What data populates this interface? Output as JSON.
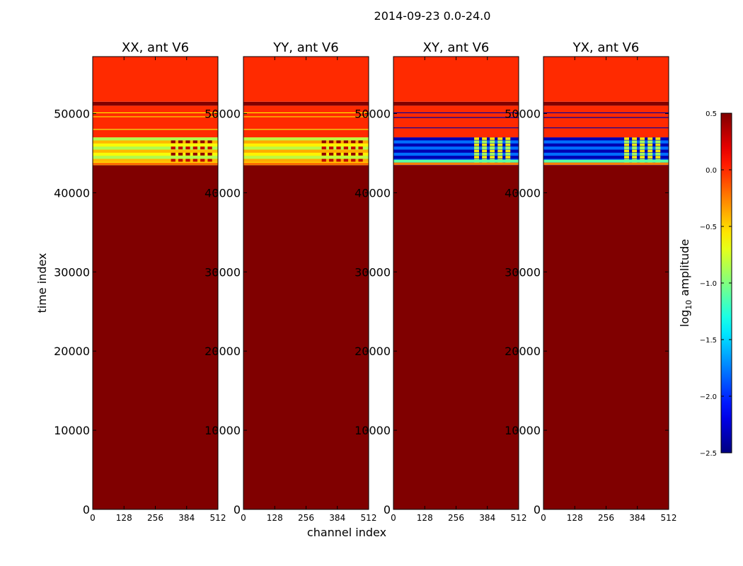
{
  "figure": {
    "suptitle": "2014-09-23 0.0-24.0"
  },
  "chart_data": {
    "type": "heatmap",
    "xlabel": "channel index",
    "ylabel": "time index",
    "xlim": [
      0,
      512
    ],
    "ylim": [
      0,
      57200
    ],
    "x_ticks": [
      0,
      128,
      256,
      384,
      512
    ],
    "y_ticks": [
      0,
      10000,
      20000,
      30000,
      40000,
      50000
    ],
    "colorbar": {
      "label": "log10 amplitude",
      "label_base": "log",
      "label_sub": "10",
      "label_rest": " amplitude",
      "range": [
        -2.5,
        0.5
      ],
      "ticks": [
        "0.5",
        "0.0",
        "−0.5",
        "−1.0",
        "−1.5",
        "−2.0",
        "−2.5"
      ],
      "tick_values": [
        0.5,
        0.0,
        -0.5,
        -1.0,
        -1.5,
        -2.0,
        -2.5
      ],
      "colormap": "jet"
    },
    "panels": [
      {
        "title": "XX, ant V6",
        "regions": [
          {
            "t0": 0,
            "t1": 43500,
            "value": 0.5
          },
          {
            "t0": 43500,
            "t1": 47000,
            "value": -0.55,
            "pattern": "parallel"
          },
          {
            "t0": 47000,
            "t1": 51000,
            "value": 0.0
          },
          {
            "t0": 51000,
            "t1": 51500,
            "value": 0.5
          },
          {
            "t0": 51500,
            "t1": 57200,
            "value": 0.0
          }
        ],
        "lines": [
          {
            "t": 48000,
            "value": -0.7
          },
          {
            "t": 49600,
            "value": -0.5
          },
          {
            "t": 50100,
            "value": -0.6
          }
        ]
      },
      {
        "title": "YY, ant V6",
        "regions": [
          {
            "t0": 0,
            "t1": 43500,
            "value": 0.5
          },
          {
            "t0": 43500,
            "t1": 47000,
            "value": -0.5,
            "pattern": "parallel"
          },
          {
            "t0": 47000,
            "t1": 51000,
            "value": 0.0
          },
          {
            "t0": 51000,
            "t1": 51500,
            "value": 0.5
          },
          {
            "t0": 51500,
            "t1": 57200,
            "value": 0.0
          }
        ],
        "lines": [
          {
            "t": 48000,
            "value": -0.7
          },
          {
            "t": 49600,
            "value": -0.5
          },
          {
            "t": 50100,
            "value": -0.6
          }
        ]
      },
      {
        "title": "XY, ant V6",
        "regions": [
          {
            "t0": 0,
            "t1": 43500,
            "value": 0.5
          },
          {
            "t0": 43500,
            "t1": 47000,
            "value": -2.0,
            "pattern": "cross"
          },
          {
            "t0": 47000,
            "t1": 51000,
            "value": 0.0
          },
          {
            "t0": 51000,
            "t1": 51500,
            "value": 0.5
          },
          {
            "t0": 51500,
            "t1": 57200,
            "value": 0.0
          }
        ],
        "lines": [
          {
            "t": 48200,
            "value": -2.4
          },
          {
            "t": 49500,
            "value": -2.4
          },
          {
            "t": 50100,
            "value": -2.4
          }
        ]
      },
      {
        "title": "YX, ant V6",
        "regions": [
          {
            "t0": 0,
            "t1": 43500,
            "value": 0.5
          },
          {
            "t0": 43500,
            "t1": 47000,
            "value": -2.0,
            "pattern": "cross"
          },
          {
            "t0": 47000,
            "t1": 51000,
            "value": 0.0
          },
          {
            "t0": 51000,
            "t1": 51500,
            "value": 0.5
          },
          {
            "t0": 51500,
            "t1": 57200,
            "value": 0.0
          }
        ],
        "lines": [
          {
            "t": 48200,
            "value": -2.4
          },
          {
            "t": 49500,
            "value": -2.4
          },
          {
            "t": 50100,
            "value": -2.4
          }
        ]
      }
    ]
  }
}
